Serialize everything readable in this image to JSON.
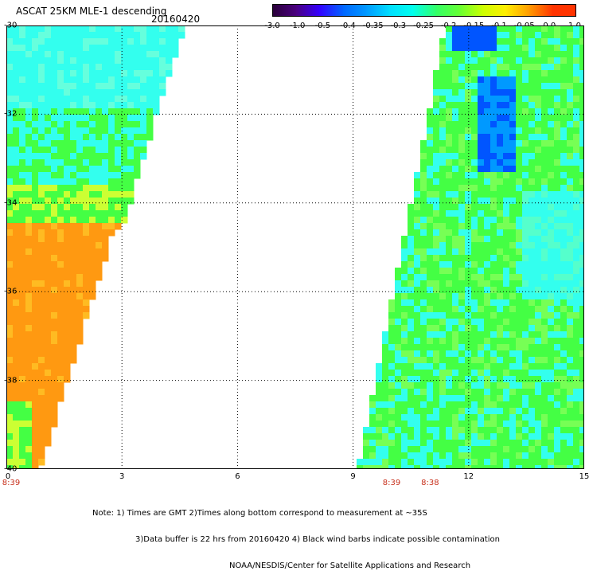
{
  "title": "ASCAT 25KM MLE-1 descending",
  "date": "20160420",
  "colorbar": {
    "ticks": [
      "-3.0",
      "-1.0",
      "-0.5",
      "-0.4",
      "-0.35",
      "-0.3",
      "-0.25",
      "-0.2",
      "-0.15",
      "-0.1",
      "-0.05",
      "0.0",
      "1.0"
    ],
    "colors": [
      "#2a003a",
      "#4a0080",
      "#3300ff",
      "#0066ff",
      "#0099ff",
      "#00ddff",
      "#00ffee",
      "#33ff66",
      "#66ff33",
      "#ccff00",
      "#ffee00",
      "#ff9900",
      "#ff3300"
    ]
  },
  "map": {
    "lat_labels": [
      "-30",
      "-32",
      "-34",
      "-36",
      "-38",
      "-40"
    ],
    "lon_labels": [
      "0",
      "3",
      "6",
      "9",
      "12",
      "15"
    ],
    "lat_range": [
      -40,
      -30
    ],
    "lon_range": [
      0,
      15
    ],
    "grid": true,
    "time_labels": [
      {
        "text": "8:39",
        "lon": 0
      },
      {
        "text": "8:39",
        "lon": 10
      },
      {
        "text": "8:38",
        "lon": 11
      }
    ],
    "swath_colors": {
      "cyan": "#33ffee",
      "green": "#44ff44",
      "yellow": "#ccff33",
      "orange": "#ff9911",
      "blue": "#0099ff",
      "deep_blue": "#0055ff"
    }
  },
  "notes": [
    "Note: 1) Times are GMT 2)Times along bottom correspond to measurement at ~35S",
    "3)Data buffer is 22 hrs from 20160420 4) Black wind barbs indicate possible contamination",
    "NOAA/NESDIS/Center for Satellite Applications and Research"
  ]
}
